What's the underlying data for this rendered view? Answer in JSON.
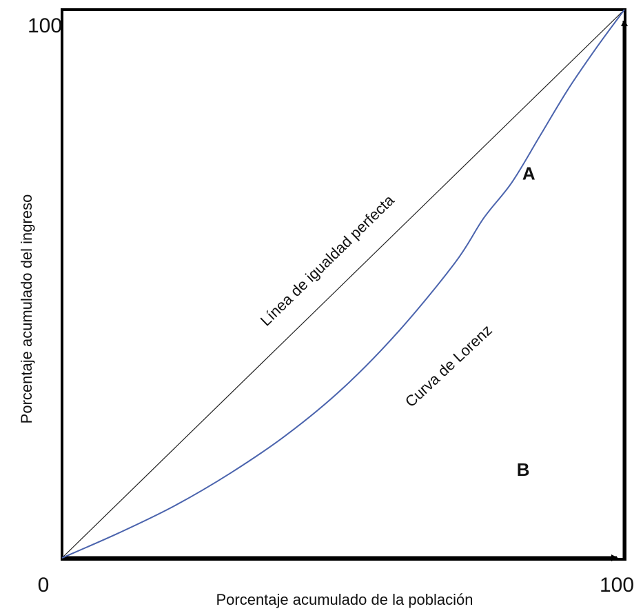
{
  "chart_data": {
    "type": "line",
    "xlabel": "Porcentaje acumulado de la población",
    "ylabel": "Porcentaje acumulado del ingreso",
    "xlim": [
      0,
      100
    ],
    "ylim": [
      0,
      100
    ],
    "tick_labels": {
      "origin": "0",
      "x_max": "100",
      "y_max": "100"
    },
    "grid": false,
    "series": [
      {
        "name": "Línea de igualdad perfecta",
        "color": "#222222",
        "x": [
          0,
          100
        ],
        "y": [
          0,
          100
        ]
      },
      {
        "name": "Curva de Lorenz",
        "color": "#4a63ad",
        "x": [
          0,
          10,
          20,
          30,
          40,
          50,
          60,
          70,
          75,
          80,
          85,
          90,
          95,
          100
        ],
        "y": [
          0,
          4.5,
          9.5,
          15.5,
          22.5,
          31,
          41.5,
          54,
          62,
          68.5,
          77,
          85.5,
          93,
          100
        ]
      }
    ],
    "annotations": [
      {
        "text": "A",
        "x": 83,
        "y": 69
      },
      {
        "text": "B",
        "x": 82,
        "y": 15
      }
    ]
  }
}
